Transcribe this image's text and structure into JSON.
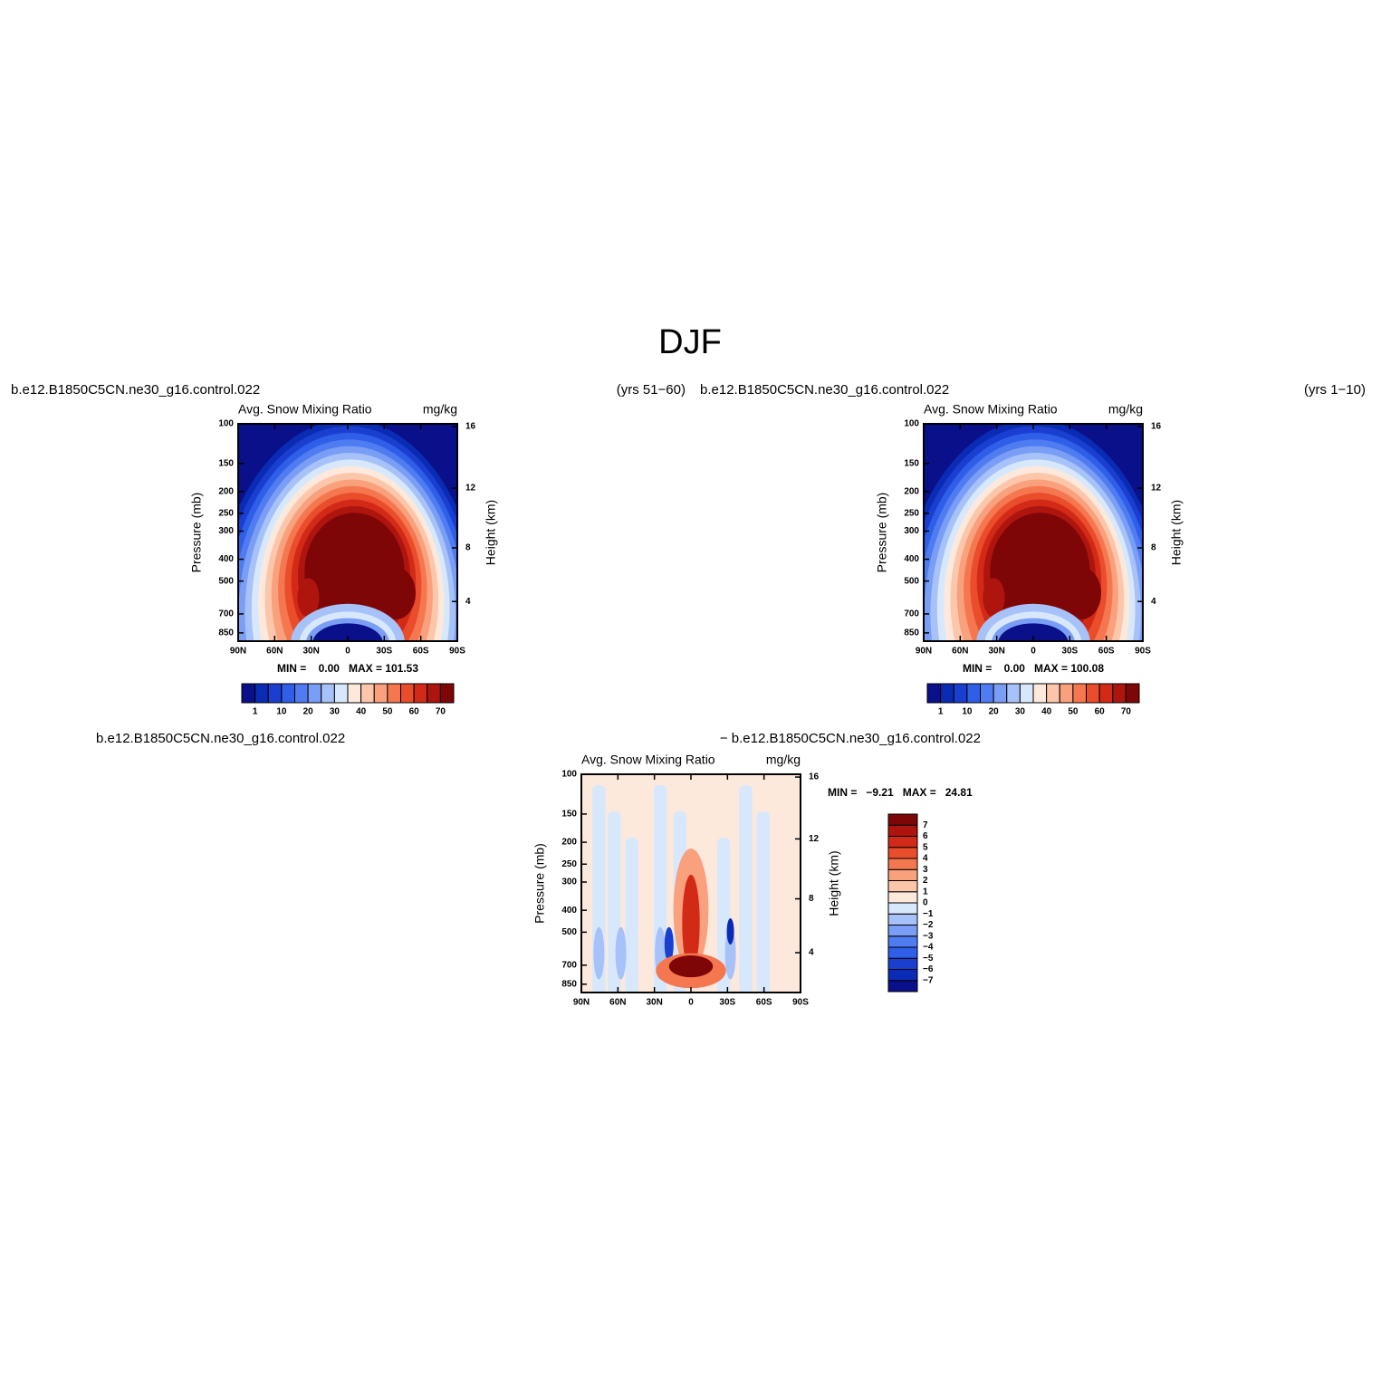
{
  "title": "DJF",
  "chart_data": [
    {
      "type": "contour",
      "title_left": "b.e12.B1850C5CN.ne30_g16.control.022",
      "title_right": "(yrs 51−60)",
      "subtitle": "Avg. Snow Mixing Ratio",
      "units": "mg/kg",
      "ylabel": "Pressure (mb)",
      "y2label": "Height (km)",
      "stats": "MIN =    0.00   MAX = 101.53",
      "log_y": true,
      "xlim": [
        90,
        -90
      ],
      "xticks": [
        {
          "value": 90,
          "label": "90N"
        },
        {
          "value": 60,
          "label": "60N"
        },
        {
          "value": 30,
          "label": "30N"
        },
        0,
        {
          "value": -30,
          "label": "30S"
        },
        {
          "value": -60,
          "label": "60S"
        },
        {
          "value": -90,
          "label": "90S"
        }
      ],
      "ylim": [
        100,
        925
      ],
      "yticks": [
        100,
        150,
        200,
        250,
        300,
        400,
        500,
        700,
        850
      ],
      "y2ticks": [
        4,
        8,
        12,
        16
      ],
      "colorbar": {
        "orientation": "horizontal",
        "levels": [
          1,
          5,
          10,
          15,
          20,
          25,
          30,
          35,
          40,
          45,
          50,
          55,
          60,
          65,
          70
        ],
        "ticks": [
          1,
          10,
          20,
          30,
          40,
          50,
          60,
          70
        ],
        "colors": [
          "#0a0f8a",
          "#0a2bb4",
          "#1a3fd0",
          "#2f5ee8",
          "#4f7cf0",
          "#7a9ef5",
          "#a7c2f8",
          "#d8e8fc",
          "#fde8dc",
          "#fcc6aa",
          "#f9a07c",
          "#f5774f",
          "#e94d2b",
          "#d22a17",
          "#ae150e",
          "#7f0606"
        ]
      }
    },
    {
      "type": "contour",
      "title_left": "b.e12.B1850C5CN.ne30_g16.control.022",
      "title_right": "(yrs 1−10)",
      "subtitle": "Avg. Snow Mixing Ratio",
      "units": "mg/kg",
      "ylabel": "Pressure (mb)",
      "y2label": "Height (km)",
      "stats": "MIN =    0.00   MAX = 100.08",
      "log_y": true,
      "xlim": [
        90,
        -90
      ],
      "xticks": [
        {
          "value": 90,
          "label": "90N"
        },
        {
          "value": 60,
          "label": "60N"
        },
        {
          "value": 30,
          "label": "30N"
        },
        0,
        {
          "value": -30,
          "label": "30S"
        },
        {
          "value": -60,
          "label": "60S"
        },
        {
          "value": -90,
          "label": "90S"
        }
      ],
      "ylim": [
        100,
        925
      ],
      "yticks": [
        100,
        150,
        200,
        250,
        300,
        400,
        500,
        700,
        850
      ],
      "y2ticks": [
        4,
        8,
        12,
        16
      ],
      "colorbar": {
        "orientation": "horizontal",
        "levels": [
          1,
          5,
          10,
          15,
          20,
          25,
          30,
          35,
          40,
          45,
          50,
          55,
          60,
          65,
          70
        ],
        "ticks": [
          1,
          10,
          20,
          30,
          40,
          50,
          60,
          70
        ],
        "colors": [
          "#0a0f8a",
          "#0a2bb4",
          "#1a3fd0",
          "#2f5ee8",
          "#4f7cf0",
          "#7a9ef5",
          "#a7c2f8",
          "#d8e8fc",
          "#fde8dc",
          "#fcc6aa",
          "#f9a07c",
          "#f5774f",
          "#e94d2b",
          "#d22a17",
          "#ae150e",
          "#7f0606"
        ]
      }
    },
    {
      "type": "contour-diff",
      "title_left": "b.e12.B1850C5CN.ne30_g16.control.022",
      "title_right": "− b.e12.B1850C5CN.ne30_g16.control.022",
      "subtitle": "Avg. Snow Mixing Ratio",
      "units": "mg/kg",
      "ylabel": "Pressure (mb)",
      "y2label": "Height (km)",
      "stats": "MIN =   −9.21   MAX =   24.81",
      "log_y": true,
      "xlim": [
        90,
        -90
      ],
      "xticks": [
        {
          "value": 90,
          "label": "90N"
        },
        {
          "value": 60,
          "label": "60N"
        },
        {
          "value": 30,
          "label": "30N"
        },
        0,
        {
          "value": -30,
          "label": "30S"
        },
        {
          "value": -60,
          "label": "60S"
        },
        {
          "value": -90,
          "label": "90S"
        }
      ],
      "ylim": [
        100,
        925
      ],
      "yticks": [
        100,
        150,
        200,
        250,
        300,
        400,
        500,
        700,
        850
      ],
      "y2ticks": [
        4,
        8,
        12,
        16
      ],
      "colorbar": {
        "orientation": "vertical",
        "levels": [
          -7,
          -6,
          -5,
          -4,
          -3,
          -2,
          -1,
          0,
          1,
          2,
          3,
          4,
          5,
          6,
          7
        ],
        "ticks": [
          {
            "value": -7,
            "label": "−7"
          },
          {
            "value": -6,
            "label": "−6"
          },
          {
            "value": -5,
            "label": "−5"
          },
          {
            "value": -4,
            "label": "−4"
          },
          {
            "value": -3,
            "label": "−3"
          },
          {
            "value": -2,
            "label": "−2"
          },
          {
            "value": -1,
            "label": "−1"
          },
          0,
          1,
          2,
          3,
          4,
          5,
          6,
          7
        ],
        "colors": [
          "#0a0f8a",
          "#0a2bb4",
          "#1a3fd0",
          "#2f5ee8",
          "#4f7cf0",
          "#7a9ef5",
          "#a7c2f8",
          "#d8e8fc",
          "#fde8dc",
          "#fcc6aa",
          "#f9a07c",
          "#f5774f",
          "#e94d2b",
          "#d22a17",
          "#ae150e",
          "#7f0606"
        ]
      }
    }
  ]
}
